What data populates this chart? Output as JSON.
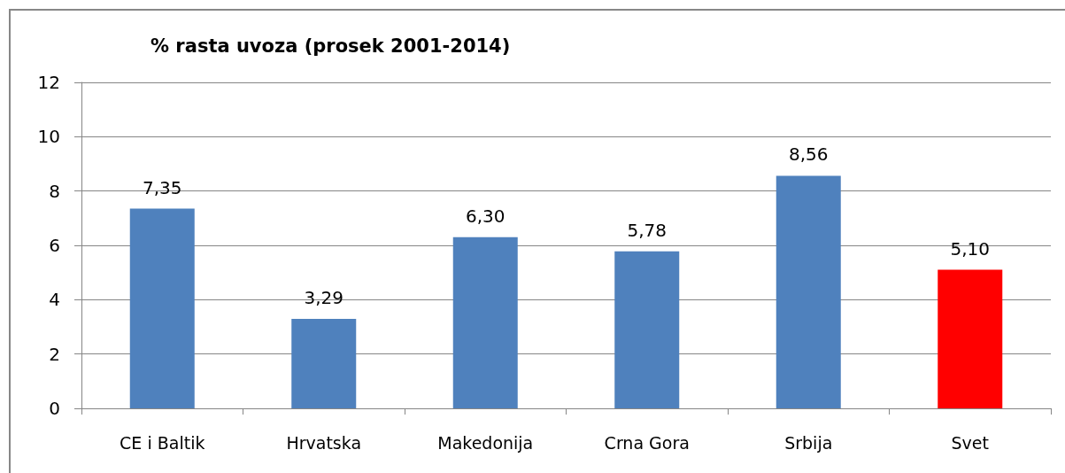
{
  "chart_data": {
    "type": "bar",
    "title": "% rasta uvoza (prosek 2001-2014)",
    "categories": [
      "CE i Baltik",
      "Hrvatska",
      "Makedonija",
      "Crna Gora",
      "Srbija",
      "Svet"
    ],
    "values": [
      7.35,
      3.29,
      6.3,
      5.78,
      8.56,
      5.1
    ],
    "value_labels": [
      "7,35",
      "3,29",
      "6,30",
      "5,78",
      "8,56",
      "5,10"
    ],
    "colors": [
      "#4f81bd",
      "#4f81bd",
      "#4f81bd",
      "#4f81bd",
      "#4f81bd",
      "#ff0000"
    ],
    "ylim": [
      0,
      12
    ],
    "yticks": [
      0,
      2,
      4,
      6,
      8,
      10,
      12
    ],
    "grid": "y"
  }
}
